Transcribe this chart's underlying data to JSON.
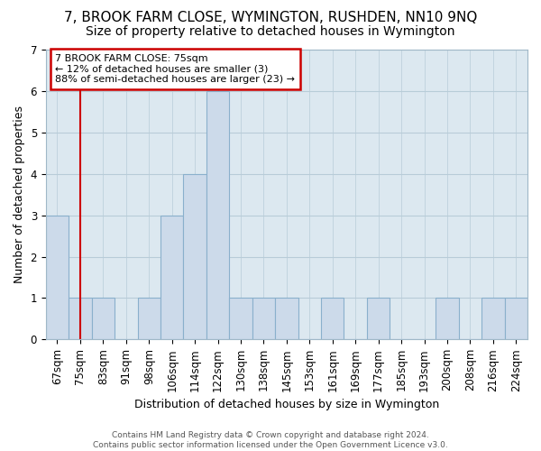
{
  "title": "7, BROOK FARM CLOSE, WYMINGTON, RUSHDEN, NN10 9NQ",
  "subtitle": "Size of property relative to detached houses in Wymington",
  "xlabel": "Distribution of detached houses by size in Wymington",
  "ylabel": "Number of detached properties",
  "categories": [
    "67sqm",
    "75sqm",
    "83sqm",
    "91sqm",
    "98sqm",
    "106sqm",
    "114sqm",
    "122sqm",
    "130sqm",
    "138sqm",
    "145sqm",
    "153sqm",
    "161sqm",
    "169sqm",
    "177sqm",
    "185sqm",
    "193sqm",
    "200sqm",
    "208sqm",
    "216sqm",
    "224sqm"
  ],
  "values": [
    3,
    1,
    1,
    0,
    1,
    3,
    4,
    6,
    1,
    1,
    1,
    0,
    1,
    0,
    1,
    0,
    0,
    1,
    0,
    1,
    1
  ],
  "highlight_index": 1,
  "bar_color": "#ccdaea",
  "bar_edge_color": "#8ab0cc",
  "highlight_bar_edge_color": "#cc0000",
  "ylim": [
    0,
    7
  ],
  "yticks": [
    0,
    1,
    2,
    3,
    4,
    5,
    6,
    7
  ],
  "annotation_line1": "7 BROOK FARM CLOSE: 75sqm",
  "annotation_line2": "← 12% of detached houses are smaller (3)",
  "annotation_line3": "88% of semi-detached houses are larger (23) →",
  "annotation_box_color": "#ffffff",
  "annotation_box_edge_color": "#cc0000",
  "footer_text": "Contains HM Land Registry data © Crown copyright and database right 2024.\nContains public sector information licensed under the Open Government Licence v3.0.",
  "bg_color": "#dce8f0",
  "grid_color": "#b8ccd8",
  "title_fontsize": 11,
  "subtitle_fontsize": 10,
  "tick_fontsize": 8.5,
  "ylabel_fontsize": 9,
  "xlabel_fontsize": 9
}
